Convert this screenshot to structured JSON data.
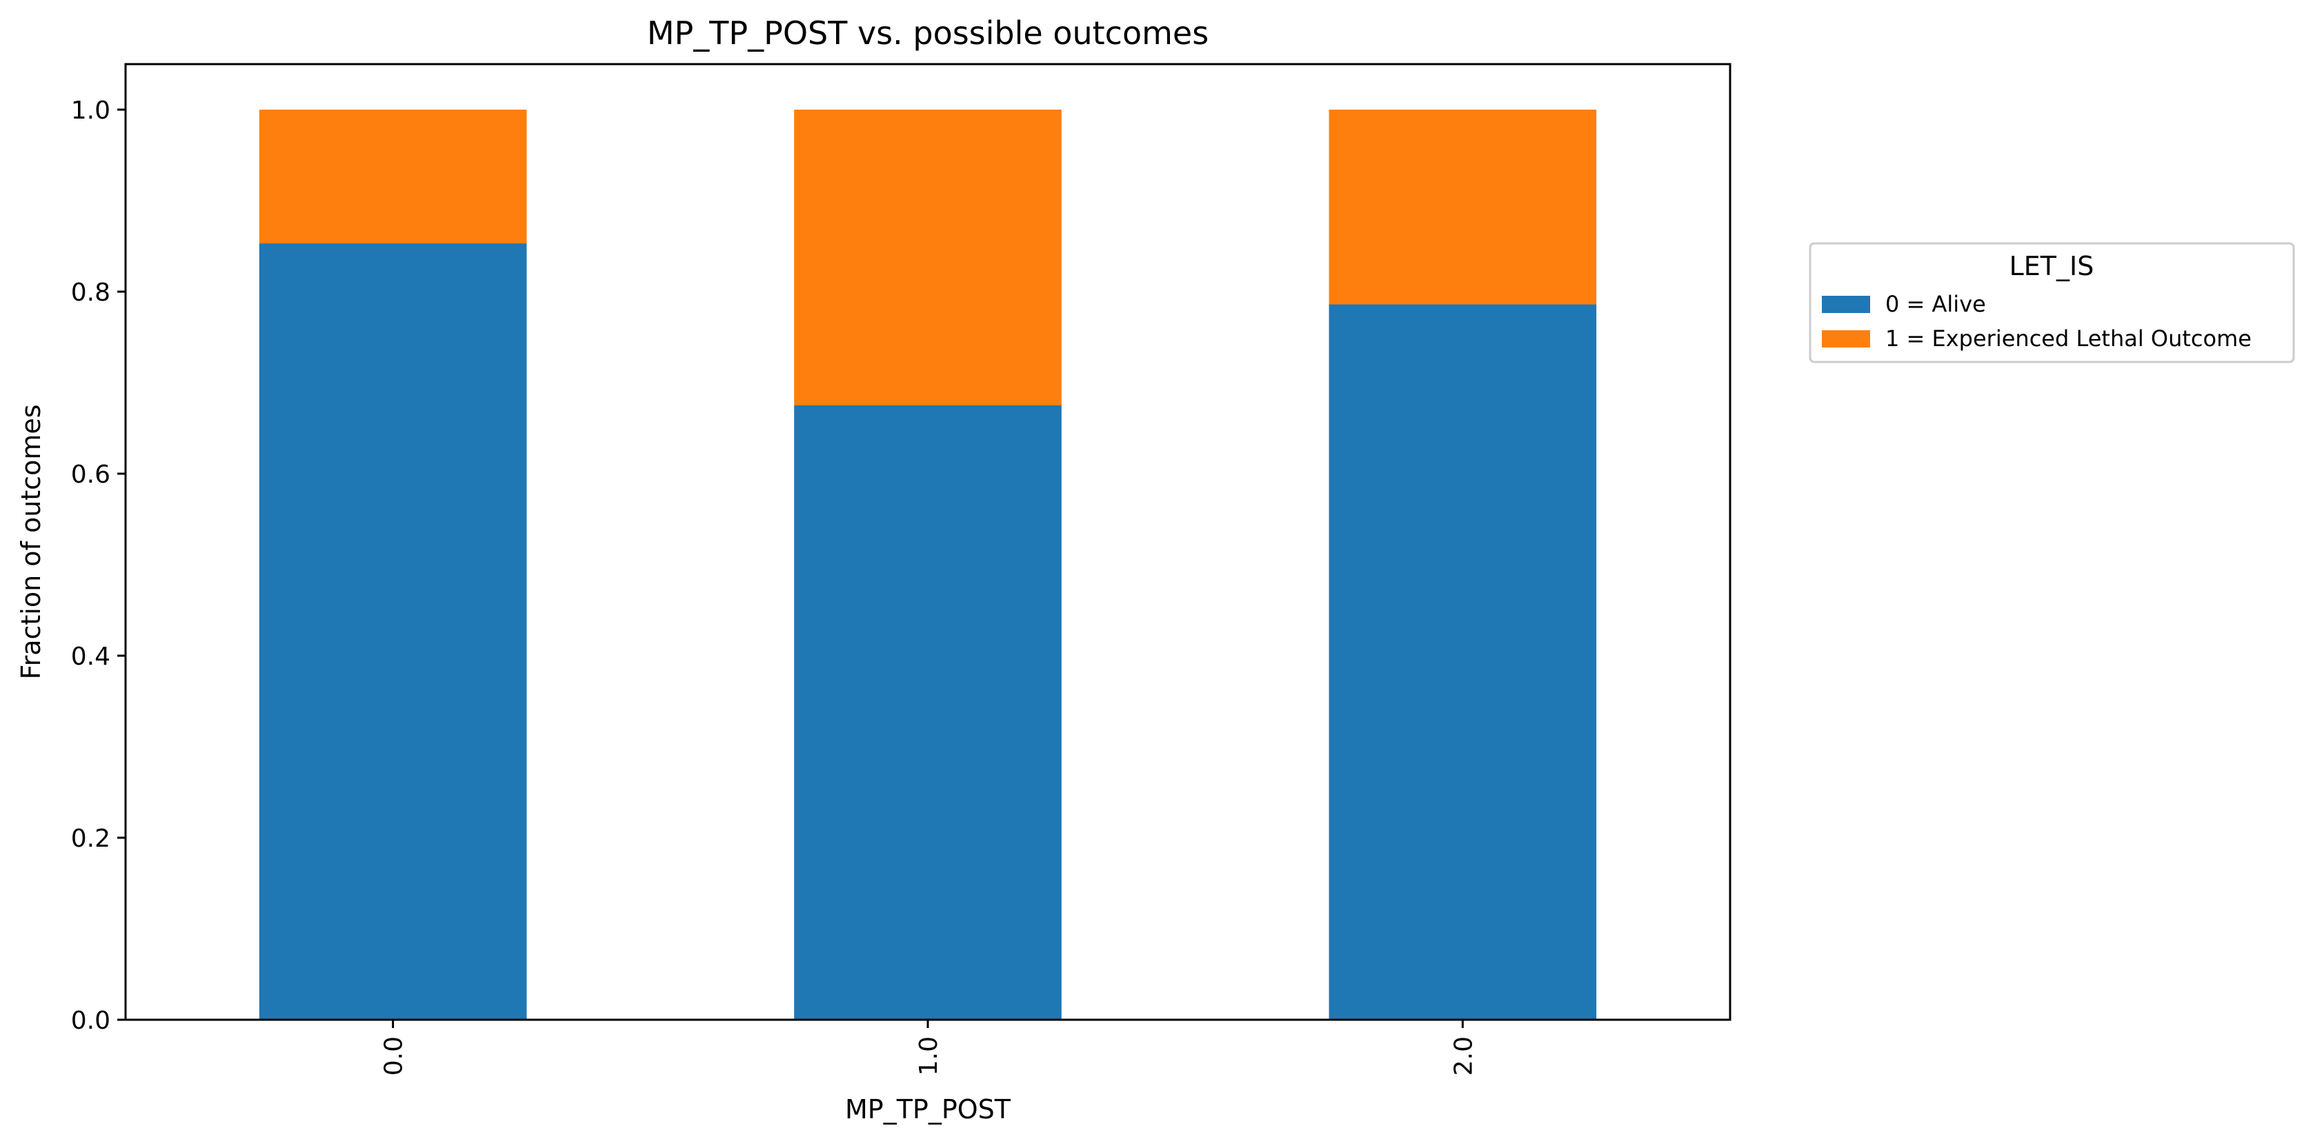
{
  "chart_data": {
    "type": "bar",
    "stacked": true,
    "title": "MP_TP_POST vs. possible outcomes",
    "xlabel": "MP_TP_POST",
    "ylabel": "Fraction of outcomes",
    "categories": [
      "0.0",
      "1.0",
      "2.0"
    ],
    "series": [
      {
        "name": "0 = Alive",
        "color": "#1f77b4",
        "values": [
          0.853,
          0.675,
          0.786
        ]
      },
      {
        "name": "1 = Experienced Lethal Outcome",
        "color": "#ff7f0e",
        "values": [
          0.147,
          0.325,
          0.214
        ]
      }
    ],
    "ylim": [
      0,
      1.05
    ],
    "yticks": [
      "0.0",
      "0.2",
      "0.4",
      "0.6",
      "0.8",
      "1.0"
    ],
    "grid": false,
    "legend": {
      "title": "LET_IS",
      "placement": "outside-right"
    }
  }
}
